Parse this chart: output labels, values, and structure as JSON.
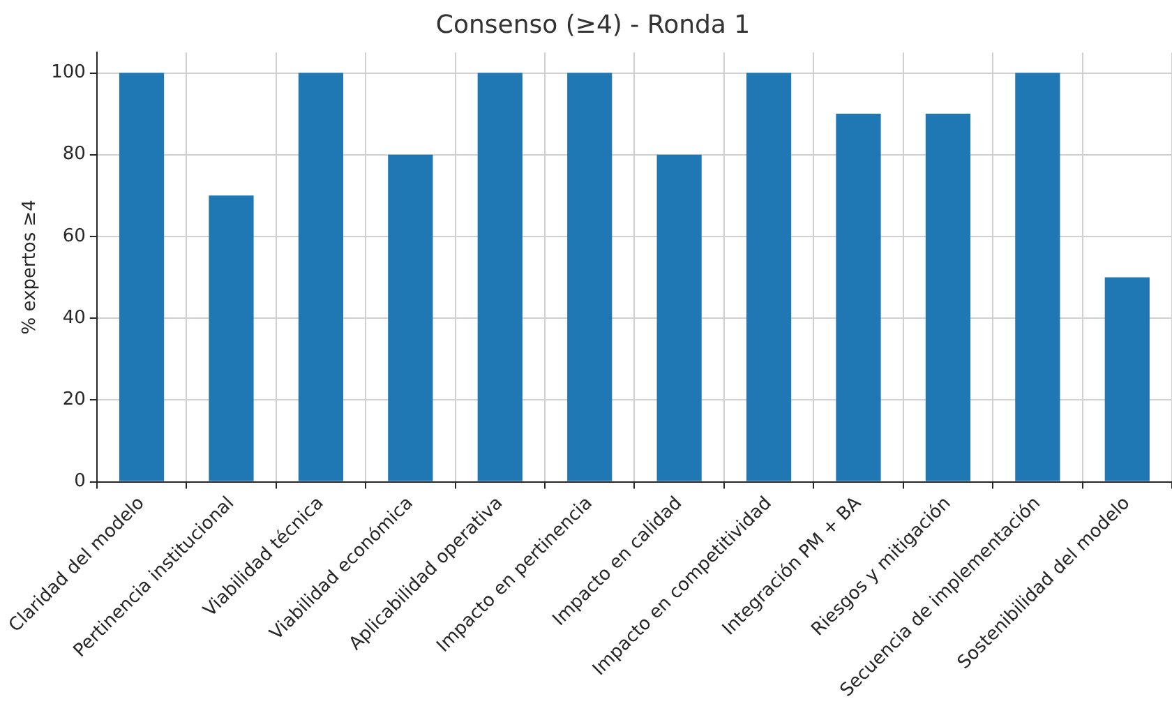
{
  "chart_data": {
    "type": "bar",
    "title": "Consenso (≥4) - Ronda 1",
    "ylabel": "% expertos ≥4",
    "categories": [
      "Claridad del modelo",
      "Pertinencia institucional",
      "Viabilidad técnica",
      "Viabilidad económica",
      "Aplicabilidad operativa",
      "Impacto en pertinencia",
      "Impacto en calidad",
      "Impacto en competitividad",
      "Integración PM + BA",
      "Riesgos y mitigación",
      "Secuencia de implementación",
      "Sostenibilidad del modelo"
    ],
    "values": [
      100,
      70,
      100,
      80,
      100,
      100,
      80,
      100,
      90,
      90,
      100,
      50
    ],
    "color": "#1f77b4",
    "ylim": [
      0,
      105
    ],
    "yticks": [
      0,
      20,
      40,
      60,
      80,
      100
    ],
    "grid": true
  }
}
